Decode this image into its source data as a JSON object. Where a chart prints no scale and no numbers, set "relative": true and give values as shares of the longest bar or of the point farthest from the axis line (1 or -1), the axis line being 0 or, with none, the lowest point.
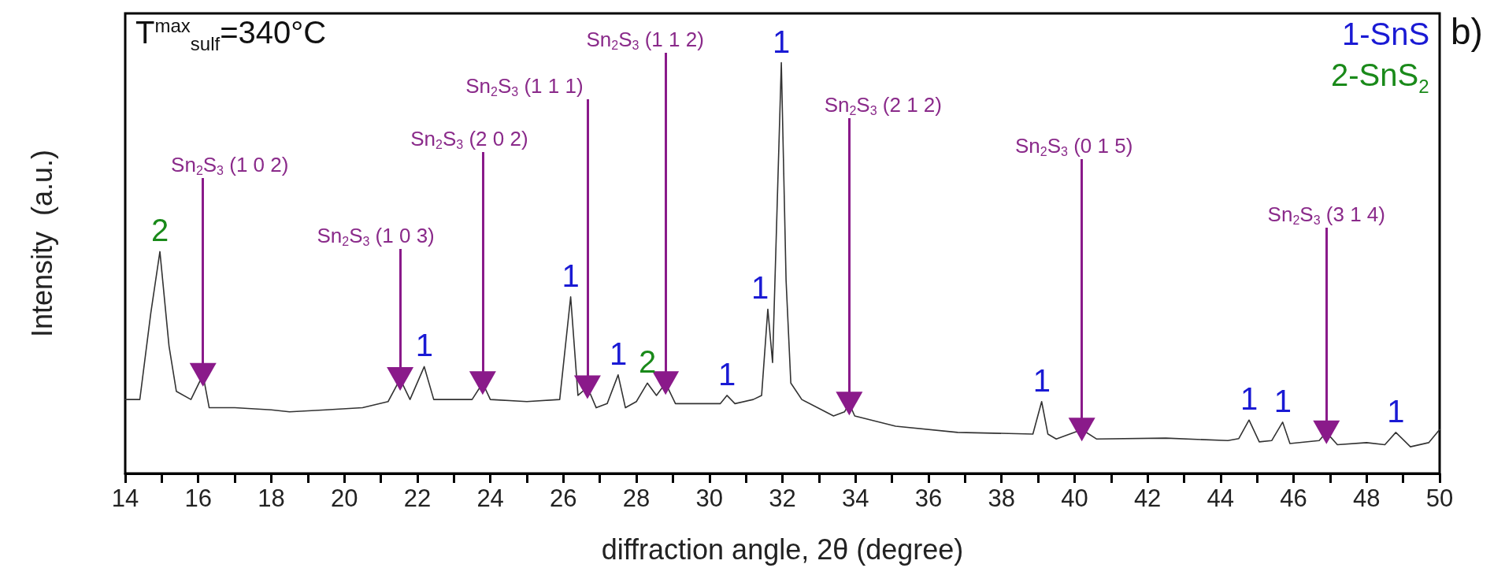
{
  "chart_data": {
    "type": "line",
    "relative": true,
    "xlabel": "diffraction angle, 2θ (degree)",
    "ylabel": "Intensity  (a.u.)",
    "xlim": [
      14,
      50
    ],
    "xticks": [
      14,
      {
        "value": 15,
        "label": null
      },
      16,
      {
        "value": 17,
        "label": null
      },
      18,
      {
        "value": 19,
        "label": null
      },
      20,
      {
        "value": 21,
        "label": null
      },
      22,
      {
        "value": 23,
        "label": null
      },
      24,
      {
        "value": 25,
        "label": null
      },
      26,
      {
        "value": 27,
        "label": null
      },
      28,
      {
        "value": 29,
        "label": null
      },
      30,
      {
        "value": 31,
        "label": null
      },
      32,
      {
        "value": 33,
        "label": null
      },
      34,
      {
        "value": 35,
        "label": null
      },
      36,
      {
        "value": 37,
        "label": null
      },
      38,
      {
        "value": 39,
        "label": null
      },
      40,
      {
        "value": 41,
        "label": null
      },
      42,
      {
        "value": 43,
        "label": null
      },
      44,
      {
        "value": 45,
        "label": null
      },
      46,
      {
        "value": 47,
        "label": null
      },
      48,
      {
        "value": 49,
        "label": null
      },
      50
    ],
    "tick_labels": "x",
    "grid": false,
    "marker": "none",
    "line_style": "solid",
    "series": [
      {
        "color": "#333333",
        "x": [
          14.0,
          14.4,
          14.7,
          14.95,
          15.2,
          15.4,
          15.8,
          16.13,
          16.3,
          17.0,
          18.0,
          18.5,
          19.5,
          20.5,
          21.2,
          21.53,
          21.8,
          22.19,
          22.45,
          23.5,
          23.79,
          24.0,
          25.0,
          25.9,
          26.2,
          26.4,
          26.66,
          26.9,
          27.2,
          27.5,
          27.7,
          28.0,
          28.3,
          28.55,
          28.8,
          29.07,
          30.0,
          30.3,
          30.48,
          30.7,
          31.2,
          31.43,
          31.6,
          31.73,
          31.97,
          32.1,
          32.23,
          32.53,
          33.4,
          33.7,
          33.83,
          33.98,
          35.1,
          36.8,
          38.86,
          39.1,
          39.27,
          39.5,
          40.0,
          40.2,
          40.6,
          42.5,
          44.2,
          44.5,
          44.78,
          45.06,
          45.4,
          45.7,
          45.9,
          46.7,
          46.9,
          47.2,
          48.0,
          48.5,
          48.8,
          49.2,
          49.7,
          50.0
        ],
        "values": [
          0.18,
          0.18,
          0.39,
          0.54,
          0.31,
          0.2,
          0.18,
          0.24,
          0.16,
          0.16,
          0.155,
          0.15,
          0.155,
          0.16,
          0.175,
          0.23,
          0.18,
          0.26,
          0.18,
          0.18,
          0.22,
          0.18,
          0.175,
          0.18,
          0.43,
          0.19,
          0.21,
          0.16,
          0.17,
          0.24,
          0.16,
          0.175,
          0.22,
          0.19,
          0.22,
          0.17,
          0.17,
          0.17,
          0.19,
          0.17,
          0.18,
          0.19,
          0.4,
          0.27,
          1.0,
          0.47,
          0.22,
          0.18,
          0.14,
          0.15,
          0.17,
          0.14,
          0.115,
          0.1,
          0.096,
          0.175,
          0.096,
          0.084,
          0.1,
          0.107,
          0.084,
          0.086,
          0.08,
          0.085,
          0.13,
          0.077,
          0.08,
          0.125,
          0.073,
          0.08,
          0.1,
          0.07,
          0.075,
          0.07,
          0.1,
          0.065,
          0.075,
          0.107
        ]
      }
    ],
    "annotations": [
      "T$^{max}$$_{sulf}$=340°C",
      "b)",
      "1-SnS",
      "2-SnS$_{2}$",
      {
        "text": "Sn$_{2}$S$_{3}$ (1 0 2)",
        "x": 16.13,
        "y": 0.24
      },
      {
        "text": "Sn$_{2}$S$_{3}$ (1 0 3)",
        "x": 21.53,
        "y": 0.23
      },
      {
        "text": "Sn$_{2}$S$_{3}$ (2 0 2)",
        "x": 23.79,
        "y": 0.22
      },
      {
        "text": "Sn$_{2}$S$_{3}$ (1 1 1)",
        "x": 26.66,
        "y": 0.21
      },
      {
        "text": "Sn$_{2}$S$_{3}$ (1 1 2)",
        "x": 28.8,
        "y": 0.22
      },
      {
        "text": "Sn$_{2}$S$_{3}$ (2 1 2)",
        "x": 33.83,
        "y": 0.17
      },
      {
        "text": "Sn$_{2}$S$_{3}$ (0 1 5)",
        "x": 40.2,
        "y": 0.107
      },
      {
        "text": "Sn$_{2}$S$_{3}$ (3 1 4)",
        "x": 46.9,
        "y": 0.1
      },
      {
        "text": "2",
        "x": 14.95,
        "y": 0.54
      },
      {
        "text": "1",
        "x": 22.19,
        "y": 0.26
      },
      {
        "text": "1",
        "x": 26.2,
        "y": 0.43
      },
      {
        "text": "1",
        "x": 27.5,
        "y": 0.24
      },
      {
        "text": "2",
        "x": 28.3,
        "y": 0.22
      },
      {
        "text": "1",
        "x": 30.48,
        "y": 0.19
      },
      {
        "text": "1",
        "x": 31.6,
        "y": 0.4
      },
      {
        "text": "1",
        "x": 31.97,
        "y": 1.0
      },
      {
        "text": "1",
        "x": 39.1,
        "y": 0.175
      },
      {
        "text": "1",
        "x": 44.78,
        "y": 0.13
      },
      {
        "text": "1",
        "x": 45.7,
        "y": 0.125
      },
      {
        "text": "1",
        "x": 48.8,
        "y": 0.1
      }
    ]
  }
}
